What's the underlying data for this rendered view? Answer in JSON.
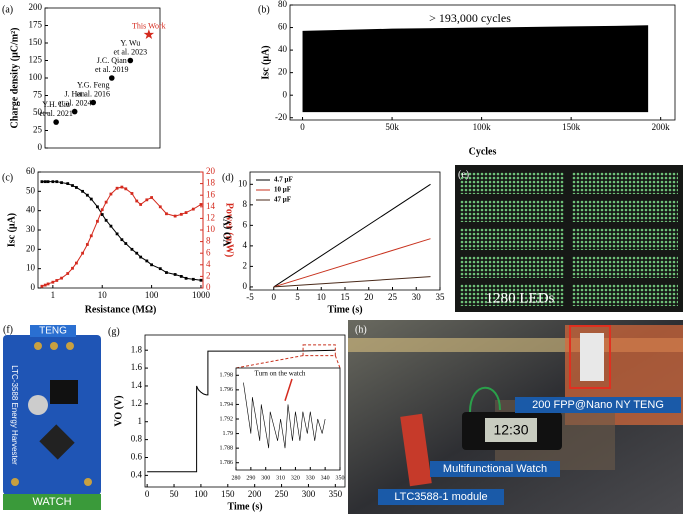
{
  "chart_data": [
    {
      "type": "scatter",
      "panel_label": "(a)",
      "ylabel": "Charge density (μC/m²)",
      "categories": [
        [
          "Y.H. Liu",
          "et al. 2021"
        ],
        [
          "J. Han",
          "et al. 2024"
        ],
        [
          "Y.G. Feng",
          "et al. 2016"
        ],
        [
          "J.C. Qian",
          "et al. 2019"
        ],
        [
          "Y. Wu",
          "et al. 2023"
        ],
        [
          "This Work"
        ]
      ],
      "values": [
        37,
        52,
        65,
        100,
        125,
        162
      ],
      "colors": [
        "#000000",
        "#000000",
        "#000000",
        "#000000",
        "#000000",
        "#d42a1e"
      ],
      "markers": [
        "circle",
        "circle",
        "circle",
        "circle",
        "circle",
        "star"
      ],
      "ylim": [
        0,
        200
      ],
      "yticks": [
        0,
        25,
        50,
        75,
        100,
        125,
        150,
        175,
        200
      ]
    },
    {
      "type": "area",
      "panel_label": "(b)",
      "annotation": "> 193,000 cycles",
      "xlabel": "Cycles",
      "ylabel": "Isc (μA)",
      "color": "#000000",
      "x": [
        0,
        25000,
        50000,
        75000,
        100000,
        125000,
        150000,
        175000,
        193000
      ],
      "upper": [
        57,
        58,
        59,
        59.5,
        60,
        60.5,
        61,
        61.5,
        62
      ],
      "lower": [
        -15,
        -15,
        -15,
        -15,
        -15,
        -15,
        -15,
        -15,
        -15
      ],
      "xlim": [
        -7000,
        208000
      ],
      "xticks": [
        0,
        {
          "value": 50000,
          "label": "50k"
        },
        {
          "value": 100000,
          "label": "100k"
        },
        {
          "value": 150000,
          "label": "150k"
        },
        {
          "value": 200000,
          "label": "200k"
        }
      ],
      "ylim": [
        -22,
        80
      ],
      "yticks": [
        -20,
        0,
        20,
        40,
        60,
        80
      ]
    },
    {
      "type": "line",
      "panel_label": "(c)",
      "xlabel": "Resistance (MΩ)",
      "ylabel": "Isc (μA)",
      "y2label": "Power (mW)",
      "y2color": "#d42a1e",
      "xscale": "log",
      "x": [
        0.6,
        0.7,
        0.8,
        1,
        1.2,
        1.5,
        2,
        2.5,
        3,
        4,
        5,
        6,
        8,
        10,
        12,
        15,
        20,
        25,
        30,
        40,
        50,
        60,
        80,
        100,
        150,
        200,
        300,
        400,
        500,
        700,
        1000
      ],
      "series": [
        {
          "color": "#000000",
          "marker": "square",
          "values": [
            55,
            55,
            55,
            55,
            55,
            54.5,
            54,
            53,
            52,
            50,
            48,
            46,
            42,
            38,
            35,
            32,
            28,
            25,
            23,
            20,
            18,
            16,
            14,
            12,
            10,
            8,
            7,
            6,
            5,
            4.5,
            4
          ]
        },
        {
          "color": "#d42a1e",
          "marker": "square",
          "axis": "y2",
          "values": [
            0.3,
            0.5,
            0.7,
            1,
            1.3,
            1.7,
            2.5,
            3.4,
            4.3,
            6,
            7.5,
            9,
            11.5,
            13.5,
            14.8,
            16.2,
            17.2,
            17.4,
            17.1,
            16.3,
            15.0,
            14.4,
            15.2,
            15.6,
            14.0,
            12.8,
            12.4,
            12.7,
            13.0,
            13.6,
            14.4
          ]
        }
      ],
      "xlim": [
        0.5,
        1100
      ],
      "xticks": [
        1,
        10,
        100,
        1000
      ],
      "ylim": [
        0,
        60
      ],
      "yticks": [
        0,
        10,
        20,
        30,
        40,
        50,
        60
      ],
      "y2lim": [
        0,
        20
      ],
      "y2ticks": [
        0,
        2,
        4,
        6,
        8,
        10,
        12,
        14,
        16,
        18,
        20
      ]
    },
    {
      "type": "line",
      "panel_label": "(d)",
      "xlabel": "Time (s)",
      "ylabel": "VO (V)",
      "legend": "upper left",
      "series": [
        {
          "name": "4.7 μF",
          "color": "#000000",
          "x": [
            0,
            33
          ],
          "values": [
            0,
            10
          ]
        },
        {
          "name": "10 μF",
          "color": "#c8321e",
          "x": [
            0,
            33
          ],
          "values": [
            0,
            4.7
          ]
        },
        {
          "name": "47 μF",
          "color": "#4a2a1a",
          "x": [
            0,
            33
          ],
          "values": [
            0,
            1.0
          ]
        }
      ],
      "xlim": [
        -5,
        35
      ],
      "xticks": [
        -5,
        0,
        5,
        10,
        15,
        20,
        25,
        30,
        35
      ],
      "ylim": [
        -0.3,
        11.2
      ],
      "yticks": [
        0,
        2,
        4,
        6,
        8,
        10
      ]
    },
    {
      "type": "line",
      "panel_label": "(g)",
      "xlabel": "Time (s)",
      "ylabel": "VO (V)",
      "x": [
        0,
        92,
        92,
        95,
        100,
        105,
        110,
        113,
        113,
        115,
        200,
        280,
        350
      ],
      "series": [
        {
          "color": "#000000",
          "values": [
            0.44,
            0.44,
            1.4,
            1.36,
            1.33,
            1.31,
            1.3,
            1.3,
            1.79,
            1.79,
            1.79,
            1.79,
            1.8
          ]
        }
      ],
      "xlim": [
        -4,
        368
      ],
      "xticks": [
        0,
        50,
        100,
        150,
        200,
        250,
        300,
        350
      ],
      "ylim": [
        0.27,
        1.97
      ],
      "yticks": [
        0.4,
        0.6,
        0.8,
        1.0,
        1.2,
        1.4,
        1.6,
        1.8
      ]
    },
    {
      "type": "line",
      "annotation": "Turn on the watch",
      "x": [
        285,
        290,
        291,
        296,
        297,
        302,
        303,
        308,
        310,
        313,
        315,
        318,
        320,
        323,
        325,
        328,
        330,
        333,
        335,
        338,
        340
      ],
      "series": [
        {
          "color": "#000000",
          "values": [
            1.797,
            1.79,
            1.795,
            1.789,
            1.794,
            1.788,
            1.793,
            1.789,
            1.792,
            1.788,
            1.794,
            1.789,
            1.793,
            1.789,
            1.793,
            1.79,
            1.793,
            1.789,
            1.792,
            1.79,
            1.792
          ]
        }
      ],
      "xlim": [
        280,
        350
      ],
      "xticks": [
        280,
        290,
        300,
        310,
        320,
        330,
        340,
        350
      ],
      "ylim": [
        1.785,
        1.799
      ],
      "yticks": [
        1.786,
        1.788,
        1.79,
        1.792,
        1.794,
        1.796,
        1.798
      ]
    }
  ],
  "photos": {
    "e": {
      "panel_label": "(e)",
      "caption": "1280 LEDs"
    },
    "f": {
      "panel_label": "(f)",
      "top": "TENG",
      "bottom": "WATCH",
      "board": "LTC-3588 Energy Harvester"
    },
    "h": {
      "panel_label": "(h)",
      "teng": "200 FPP@Nano NY TENG",
      "watch": "Multifunctional Watch",
      "module": "LTC3588-1 module",
      "clock": "12:30"
    }
  }
}
